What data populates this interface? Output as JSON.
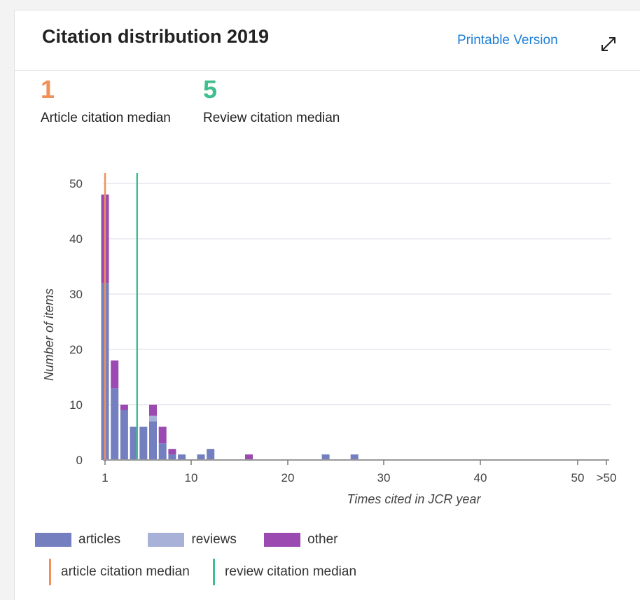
{
  "header": {
    "title": "Citation distribution 2019",
    "printable_label": "Printable Version"
  },
  "medians": {
    "article_value": "1",
    "article_label": "Article citation median",
    "review_value": "5",
    "review_label": "Review citation median"
  },
  "colors": {
    "articles": "#737fbf",
    "reviews": "#a8b2d8",
    "other": "#9a4ab0",
    "article_median": "#f0915a",
    "review_median": "#3fbf8e",
    "link": "#1f7fd6"
  },
  "legend": {
    "articles": "articles",
    "reviews": "reviews",
    "other": "other",
    "article_median": "article citation median",
    "review_median": "review citation median"
  },
  "chart_data": {
    "type": "bar",
    "stacked": true,
    "xlabel": "Times cited in JCR year",
    "ylabel": "Number of items",
    "ylim": [
      0,
      50
    ],
    "yticks": [
      0,
      10,
      20,
      30,
      40,
      50
    ],
    "xticks": [
      "1",
      "10",
      "20",
      "30",
      "40",
      "50",
      ">50"
    ],
    "grid": true,
    "x": [
      0,
      1,
      2,
      3,
      4,
      5,
      6,
      7,
      8,
      9,
      10,
      11,
      12,
      13,
      14,
      15,
      16,
      17,
      18,
      19,
      20,
      21,
      22,
      23,
      24,
      25,
      26
    ],
    "series": [
      {
        "name": "articles",
        "values": [
          32,
          13,
          9,
          6,
          6,
          7,
          3,
          1,
          1,
          0,
          1,
          2,
          0,
          0,
          0,
          0,
          0,
          0,
          0,
          0,
          0,
          0,
          0,
          1,
          0,
          0,
          1
        ]
      },
      {
        "name": "reviews",
        "values": [
          0,
          0,
          0,
          0,
          0,
          1,
          0,
          0,
          0,
          0,
          0,
          0,
          0,
          0,
          0,
          0,
          0,
          0,
          0,
          0,
          0,
          0,
          0,
          0,
          0,
          0,
          0
        ]
      },
      {
        "name": "other",
        "values": [
          16,
          5,
          1,
          0,
          0,
          2,
          3,
          1,
          0,
          0,
          0,
          0,
          0,
          0,
          0,
          1,
          0,
          0,
          0,
          0,
          0,
          0,
          0,
          0,
          0,
          0,
          0
        ]
      }
    ],
    "medians": [
      {
        "name": "article citation median",
        "x": 1
      },
      {
        "name": "review citation median",
        "x": 5
      }
    ]
  }
}
